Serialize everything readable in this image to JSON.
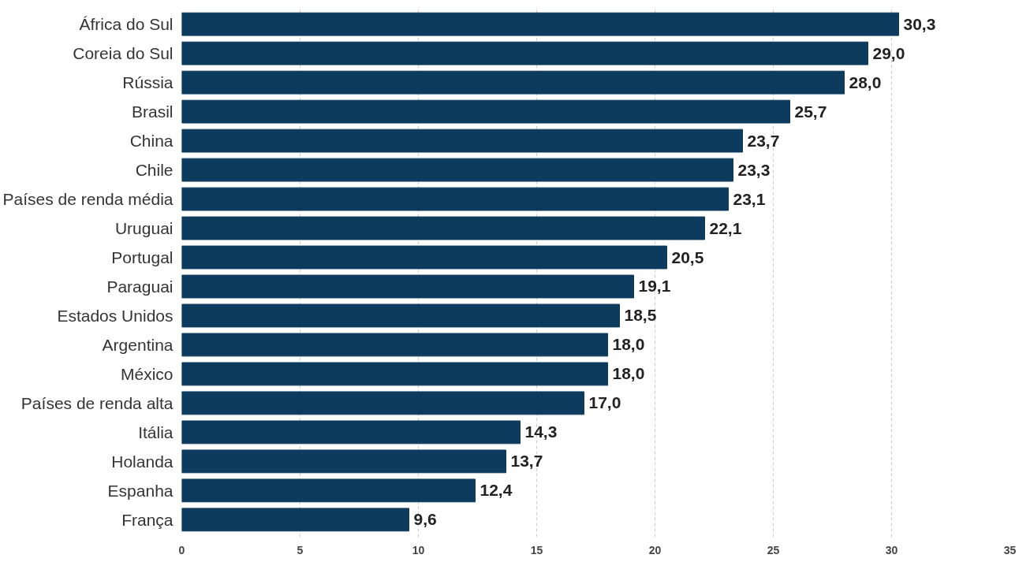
{
  "chart_data": {
    "type": "bar",
    "orientation": "horizontal",
    "categories": [
      "África do Sul",
      "Coreia do Sul",
      "Rússia",
      "Brasil",
      "China",
      "Chile",
      "Países de renda média",
      "Uruguai",
      "Portugal",
      "Paraguai",
      "Estados Unidos",
      "Argentina",
      "México",
      "Países de renda alta",
      "Itália",
      "Holanda",
      "Espanha",
      "França"
    ],
    "values": [
      30.3,
      29.0,
      28.0,
      25.7,
      23.7,
      23.3,
      23.1,
      22.1,
      20.5,
      19.1,
      18.5,
      18.0,
      18.0,
      17.0,
      14.3,
      13.7,
      12.4,
      9.6
    ],
    "value_labels": [
      "30,3",
      "29,0",
      "28,0",
      "25,7",
      "23,7",
      "23,3",
      "23,1",
      "22,1",
      "20,5",
      "19,1",
      "18,5",
      "18,0",
      "18,0",
      "17,0",
      "14,3",
      "13,7",
      "12,4",
      "9,6"
    ],
    "color": "#0d3b5e",
    "xlim": [
      0,
      35
    ],
    "xticks": [
      0,
      5,
      10,
      15,
      20,
      25,
      30,
      35
    ],
    "grid": "x"
  }
}
